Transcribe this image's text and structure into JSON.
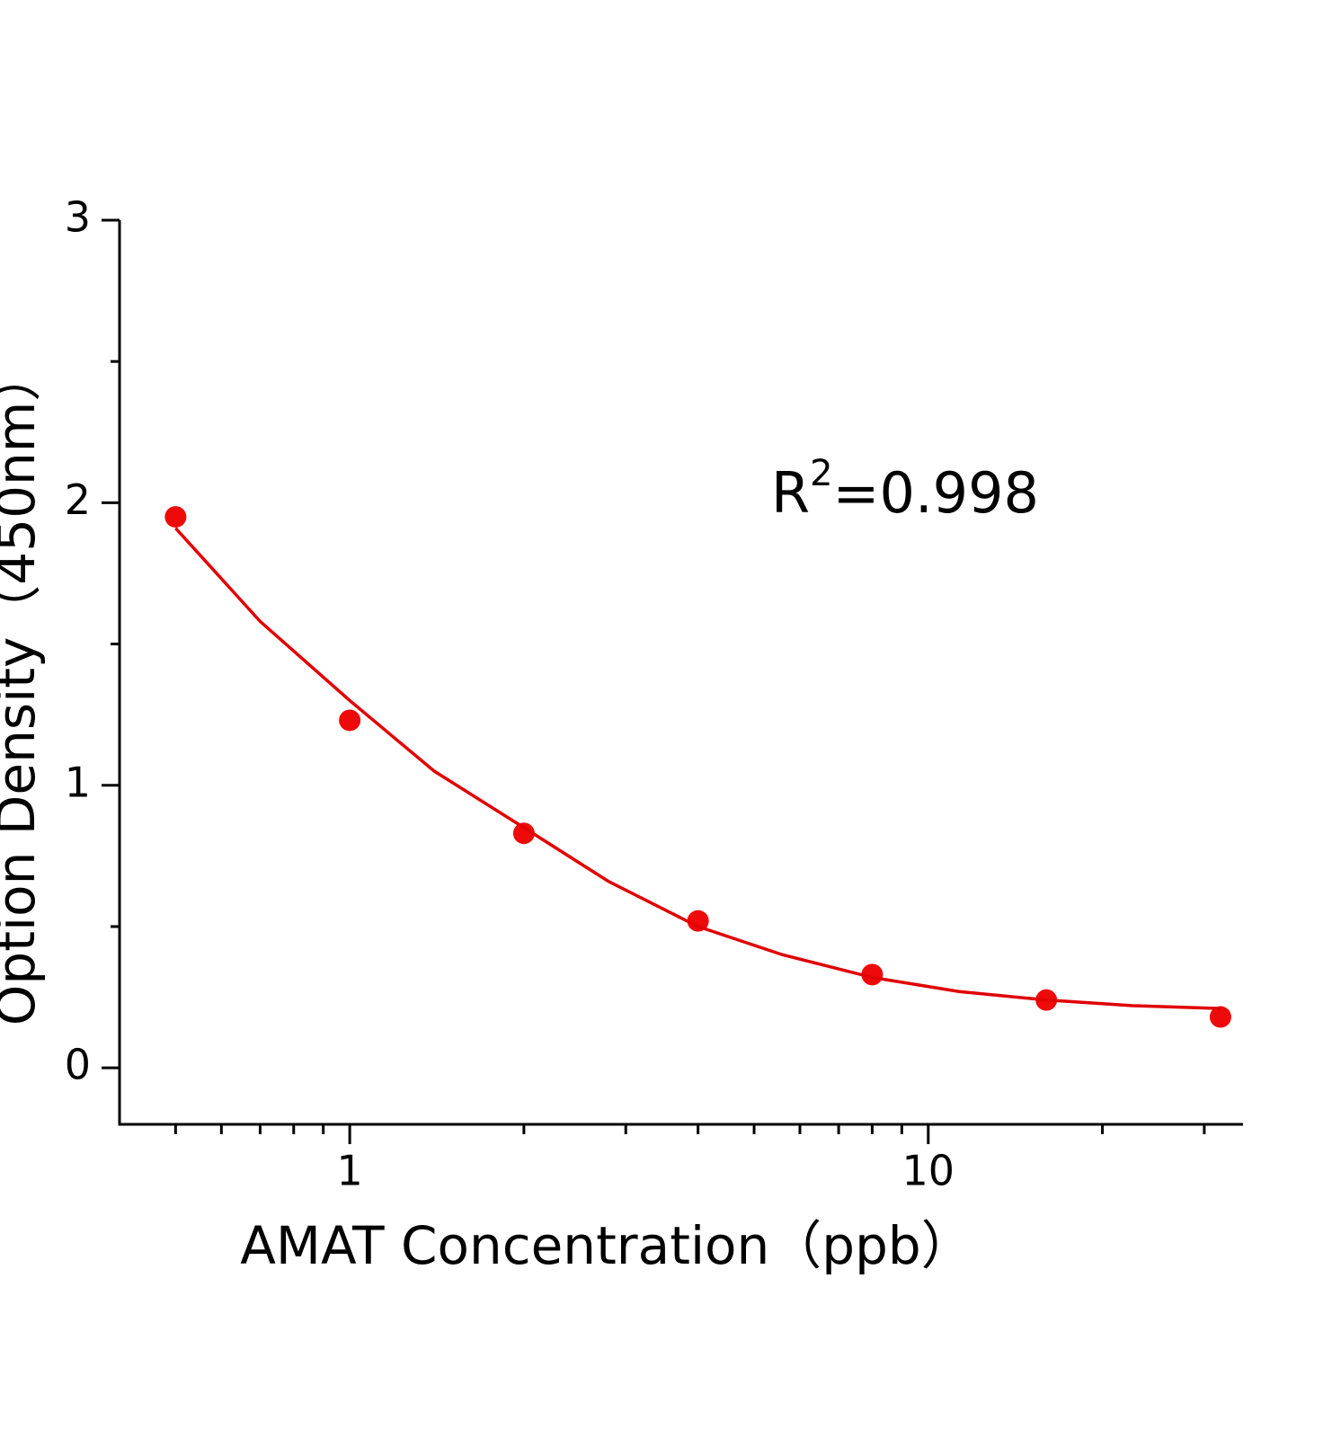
{
  "chart_data": {
    "type": "scatter",
    "x_label": "AMAT Concentration（ppb）",
    "y_label": "Option Density（450nm）",
    "annotation": {
      "text": "R",
      "sup": "2",
      "rest": "=0.998"
    },
    "x_log": true,
    "xlim": [
      0.4,
      35
    ],
    "xticks": [
      1,
      10
    ],
    "xminorticks": [
      0.5,
      0.6,
      0.7,
      0.8,
      0.9,
      2,
      3,
      4,
      5,
      6,
      7,
      8,
      9,
      20,
      30
    ],
    "ylim": [
      -0.2,
      3
    ],
    "yticks": [
      0,
      1,
      2,
      3
    ],
    "yminorticks": [
      0.5,
      1.5,
      2.5
    ],
    "series": [
      {
        "mode": "markers",
        "color": "#ee0a0a",
        "x": [
          0.5,
          1,
          2,
          4,
          8,
          16,
          32
        ],
        "values": [
          1.95,
          1.23,
          0.83,
          0.52,
          0.33,
          0.24,
          0.18
        ]
      },
      {
        "mode": "line",
        "color": "#e00000",
        "x": [
          0.5,
          0.7,
          1,
          1.4,
          2,
          2.8,
          4,
          5.6,
          8,
          11.3,
          16,
          22.6,
          32
        ],
        "values": [
          1.91,
          1.58,
          1.3,
          1.05,
          0.85,
          0.66,
          0.5,
          0.4,
          0.32,
          0.27,
          0.24,
          0.22,
          0.21
        ]
      }
    ]
  }
}
